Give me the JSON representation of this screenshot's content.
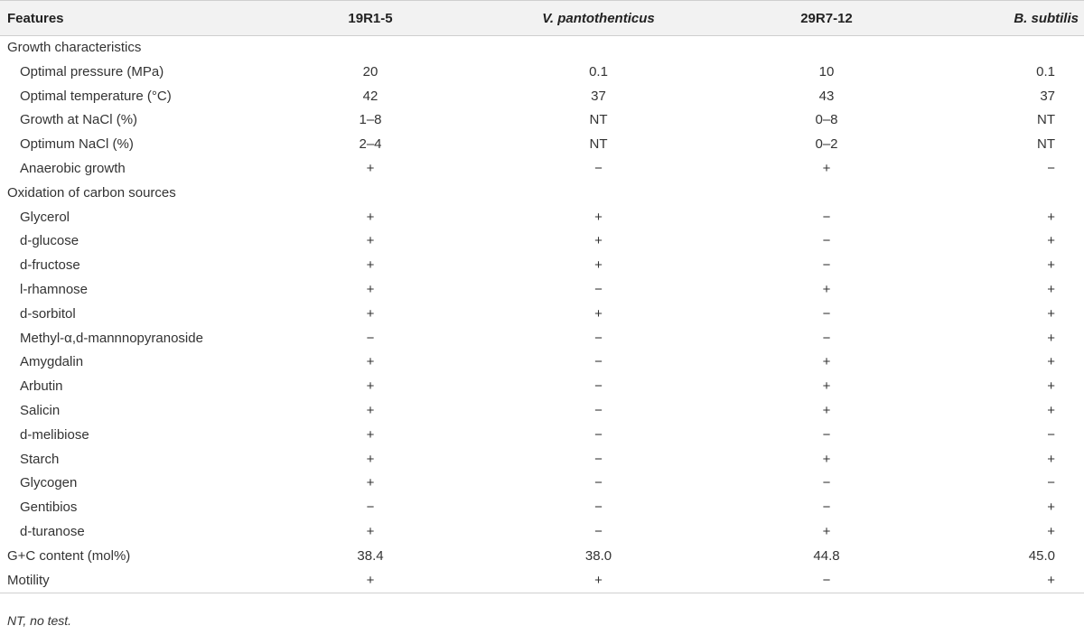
{
  "table": {
    "headers": [
      "Features",
      "19R1-5",
      "V. pantothenticus",
      "29R7-12",
      "B. subtilis"
    ],
    "rows": [
      {
        "feature": "Growth characteristics",
        "sub": false,
        "values": [
          "",
          "",
          "",
          ""
        ]
      },
      {
        "feature": "Optimal pressure (MPa)",
        "sub": true,
        "values": [
          "20",
          "0.1",
          "10",
          "0.1"
        ]
      },
      {
        "feature": "Optimal temperature (°C)",
        "sub": true,
        "values": [
          "42",
          "37",
          "43",
          "37"
        ]
      },
      {
        "feature": "Growth at NaCl (%)",
        "sub": true,
        "values": [
          "1–8",
          "NT",
          "0–8",
          "NT"
        ]
      },
      {
        "feature": "Optimum NaCl (%)",
        "sub": true,
        "values": [
          "2–4",
          "NT",
          "0–2",
          "NT"
        ]
      },
      {
        "feature": "Anaerobic growth",
        "sub": true,
        "values": [
          "+",
          "−",
          "+",
          "−"
        ]
      },
      {
        "feature": "Oxidation of carbon sources",
        "sub": false,
        "values": [
          "",
          "",
          "",
          ""
        ]
      },
      {
        "feature": "Glycerol",
        "sub": true,
        "values": [
          "+",
          "+",
          "−",
          "+"
        ]
      },
      {
        "feature": "d-glucose",
        "sub": true,
        "values": [
          "+",
          "+",
          "−",
          "+"
        ]
      },
      {
        "feature": "d-fructose",
        "sub": true,
        "values": [
          "+",
          "+",
          "−",
          "+"
        ]
      },
      {
        "feature": "l-rhamnose",
        "sub": true,
        "values": [
          "+",
          "−",
          "+",
          "+"
        ]
      },
      {
        "feature": "d-sorbitol",
        "sub": true,
        "values": [
          "+",
          "+",
          "−",
          "+"
        ]
      },
      {
        "feature": "Methyl-α,d-mannnopyranoside",
        "sub": true,
        "values": [
          "−",
          "−",
          "−",
          "+"
        ]
      },
      {
        "feature": "Amygdalin",
        "sub": true,
        "values": [
          "+",
          "−",
          "+",
          "+"
        ]
      },
      {
        "feature": "Arbutin",
        "sub": true,
        "values": [
          "+",
          "−",
          "+",
          "+"
        ]
      },
      {
        "feature": "Salicin",
        "sub": true,
        "values": [
          "+",
          "−",
          "+",
          "+"
        ]
      },
      {
        "feature": "d-melibiose",
        "sub": true,
        "values": [
          "+",
          "−",
          "−",
          "−"
        ]
      },
      {
        "feature": "Starch",
        "sub": true,
        "values": [
          "+",
          "−",
          "+",
          "+"
        ]
      },
      {
        "feature": "Glycogen",
        "sub": true,
        "values": [
          "+",
          "−",
          "−",
          "−"
        ]
      },
      {
        "feature": "Gentibios",
        "sub": true,
        "values": [
          "−",
          "−",
          "−",
          "+"
        ]
      },
      {
        "feature": "d-turanose",
        "sub": true,
        "values": [
          "+",
          "−",
          "+",
          "+"
        ]
      },
      {
        "feature": "G+C content (mol%)",
        "sub": false,
        "values": [
          "38.4",
          "38.0",
          "44.8",
          "45.0"
        ]
      },
      {
        "feature": "Motility",
        "sub": false,
        "values": [
          "+",
          "+",
          "−",
          "+"
        ]
      }
    ]
  },
  "footnote": "NT, no test."
}
